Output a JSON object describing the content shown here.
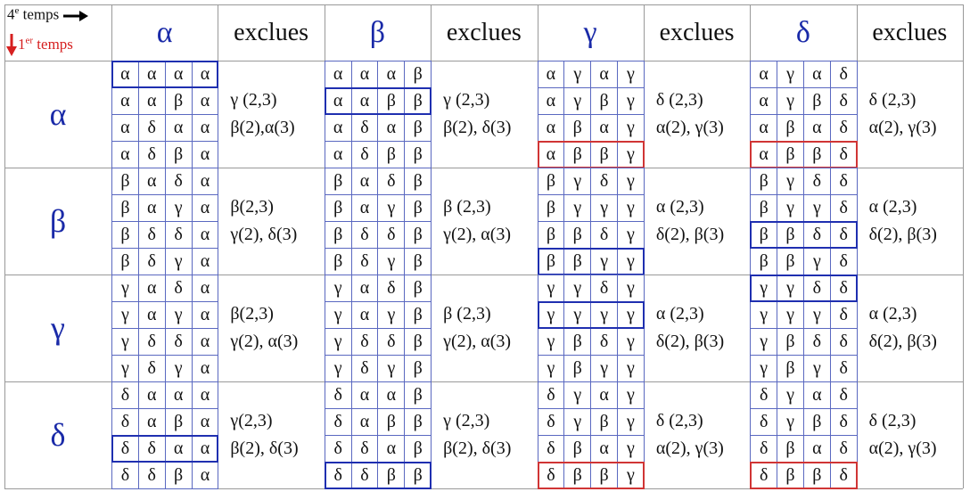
{
  "corner": {
    "top": {
      "number": "4",
      "sup": "e",
      "text": "temps"
    },
    "bottom": {
      "number": "1",
      "sup": "er",
      "text": "temps"
    }
  },
  "header": [
    "α",
    "exclues",
    "β",
    "exclues",
    "γ",
    "exclues",
    "δ",
    "exclues"
  ],
  "rows": [
    {
      "label": "α",
      "blocks": [
        {
          "grid": [
            [
              "α",
              "α",
              "α",
              "α"
            ],
            [
              "α",
              "α",
              "β",
              "α"
            ],
            [
              "α",
              "δ",
              "α",
              "α"
            ],
            [
              "α",
              "δ",
              "β",
              "α"
            ]
          ],
          "frame": {
            "row": 0,
            "color": "#1f2fb0"
          },
          "exclues": [
            "γ (2,3)",
            "β(2),α(3)"
          ]
        },
        {
          "grid": [
            [
              "α",
              "α",
              "α",
              "β"
            ],
            [
              "α",
              "α",
              "β",
              "β"
            ],
            [
              "α",
              "δ",
              "α",
              "β"
            ],
            [
              "α",
              "δ",
              "β",
              "β"
            ]
          ],
          "frame": {
            "row": 1,
            "color": "#1f2fb0"
          },
          "exclues": [
            "γ (2,3)",
            "β(2), δ(3)"
          ]
        },
        {
          "grid": [
            [
              "α",
              "γ",
              "α",
              "γ"
            ],
            [
              "α",
              "γ",
              "β",
              "γ"
            ],
            [
              "α",
              "β",
              "α",
              "γ"
            ],
            [
              "α",
              "β",
              "β",
              "γ"
            ]
          ],
          "frame": {
            "row": 3,
            "color": "#d03535"
          },
          "exclues": [
            "δ (2,3)",
            "α(2), γ(3)"
          ]
        },
        {
          "grid": [
            [
              "α",
              "γ",
              "α",
              "δ"
            ],
            [
              "α",
              "γ",
              "β",
              "δ"
            ],
            [
              "α",
              "β",
              "α",
              "δ"
            ],
            [
              "α",
              "β",
              "β",
              "δ"
            ]
          ],
          "frame": {
            "row": 3,
            "color": "#d03535"
          },
          "exclues": [
            "δ (2,3)",
            "α(2), γ(3)"
          ]
        }
      ]
    },
    {
      "label": "β",
      "blocks": [
        {
          "grid": [
            [
              "β",
              "α",
              "δ",
              "α"
            ],
            [
              "β",
              "α",
              "γ",
              "α"
            ],
            [
              "β",
              "δ",
              "δ",
              "α"
            ],
            [
              "β",
              "δ",
              "γ",
              "α"
            ]
          ],
          "exclues": [
            "β(2,3)",
            "γ(2), δ(3)"
          ]
        },
        {
          "grid": [
            [
              "β",
              "α",
              "δ",
              "β"
            ],
            [
              "β",
              "α",
              "γ",
              "β"
            ],
            [
              "β",
              "δ",
              "δ",
              "β"
            ],
            [
              "β",
              "δ",
              "γ",
              "β"
            ]
          ],
          "exclues": [
            "β (2,3)",
            "γ(2), α(3)"
          ]
        },
        {
          "grid": [
            [
              "β",
              "γ",
              "δ",
              "γ"
            ],
            [
              "β",
              "γ",
              "γ",
              "γ"
            ],
            [
              "β",
              "β",
              "δ",
              "γ"
            ],
            [
              "β",
              "β",
              "γ",
              "γ"
            ]
          ],
          "frame": {
            "row": 3,
            "color": "#1f2fb0"
          },
          "exclues": [
            "α (2,3)",
            "δ(2), β(3)"
          ]
        },
        {
          "grid": [
            [
              "β",
              "γ",
              "δ",
              "δ"
            ],
            [
              "β",
              "γ",
              "γ",
              "δ"
            ],
            [
              "β",
              "β",
              "δ",
              "δ"
            ],
            [
              "β",
              "β",
              "γ",
              "δ"
            ]
          ],
          "frame": {
            "row": 2,
            "color": "#1f2fb0"
          },
          "exclues": [
            "α (2,3)",
            "δ(2), β(3)"
          ]
        }
      ]
    },
    {
      "label": "γ",
      "blocks": [
        {
          "grid": [
            [
              "γ",
              "α",
              "δ",
              "α"
            ],
            [
              "γ",
              "α",
              "γ",
              "α"
            ],
            [
              "γ",
              "δ",
              "δ",
              "α"
            ],
            [
              "γ",
              "δ",
              "γ",
              "α"
            ]
          ],
          "exclues": [
            "β(2,3)",
            "γ(2), α(3)"
          ]
        },
        {
          "grid": [
            [
              "γ",
              "α",
              "δ",
              "β"
            ],
            [
              "γ",
              "α",
              "γ",
              "β"
            ],
            [
              "γ",
              "δ",
              "δ",
              "β"
            ],
            [
              "γ",
              "δ",
              "γ",
              "β"
            ]
          ],
          "exclues": [
            "β (2,3)",
            "γ(2), α(3)"
          ]
        },
        {
          "grid": [
            [
              "γ",
              "γ",
              "δ",
              "γ"
            ],
            [
              "γ",
              "γ",
              "γ",
              "γ"
            ],
            [
              "γ",
              "β",
              "δ",
              "γ"
            ],
            [
              "γ",
              "β",
              "γ",
              "γ"
            ]
          ],
          "frame": {
            "row": 1,
            "color": "#1f2fb0"
          },
          "exclues": [
            "α (2,3)",
            "δ(2), β(3)"
          ]
        },
        {
          "grid": [
            [
              "γ",
              "γ",
              "δ",
              "δ"
            ],
            [
              "γ",
              "γ",
              "γ",
              "δ"
            ],
            [
              "γ",
              "β",
              "δ",
              "δ"
            ],
            [
              "γ",
              "β",
              "γ",
              "δ"
            ]
          ],
          "frame": {
            "row": 0,
            "color": "#1f2fb0"
          },
          "exclues": [
            "α (2,3)",
            "δ(2), β(3)"
          ]
        }
      ]
    },
    {
      "label": "δ",
      "blocks": [
        {
          "grid": [
            [
              "δ",
              "α",
              "α",
              "α"
            ],
            [
              "δ",
              "α",
              "β",
              "α"
            ],
            [
              "δ",
              "δ",
              "α",
              "α"
            ],
            [
              "δ",
              "δ",
              "β",
              "α"
            ]
          ],
          "frame": {
            "row": 2,
            "color": "#1f2fb0"
          },
          "exclues": [
            "γ(2,3)",
            "β(2), δ(3)"
          ]
        },
        {
          "grid": [
            [
              "δ",
              "α",
              "α",
              "β"
            ],
            [
              "δ",
              "α",
              "β",
              "β"
            ],
            [
              "δ",
              "δ",
              "α",
              "β"
            ],
            [
              "δ",
              "δ",
              "β",
              "β"
            ]
          ],
          "frame": {
            "row": 3,
            "color": "#1f2fb0"
          },
          "exclues": [
            "γ (2,3)",
            "β(2), δ(3)"
          ]
        },
        {
          "grid": [
            [
              "δ",
              "γ",
              "α",
              "γ"
            ],
            [
              "δ",
              "γ",
              "β",
              "γ"
            ],
            [
              "δ",
              "β",
              "α",
              "γ"
            ],
            [
              "δ",
              "β",
              "β",
              "γ"
            ]
          ],
          "frame": {
            "row": 3,
            "color": "#d03535"
          },
          "exclues": [
            "δ (2,3)",
            "α(2), γ(3)"
          ]
        },
        {
          "grid": [
            [
              "δ",
              "γ",
              "α",
              "δ"
            ],
            [
              "δ",
              "γ",
              "β",
              "δ"
            ],
            [
              "δ",
              "β",
              "α",
              "δ"
            ],
            [
              "δ",
              "β",
              "β",
              "δ"
            ]
          ],
          "frame": {
            "row": 3,
            "color": "#d03535"
          },
          "exclues": [
            "δ (2,3)",
            "α(2), γ(3)"
          ]
        }
      ]
    }
  ]
}
